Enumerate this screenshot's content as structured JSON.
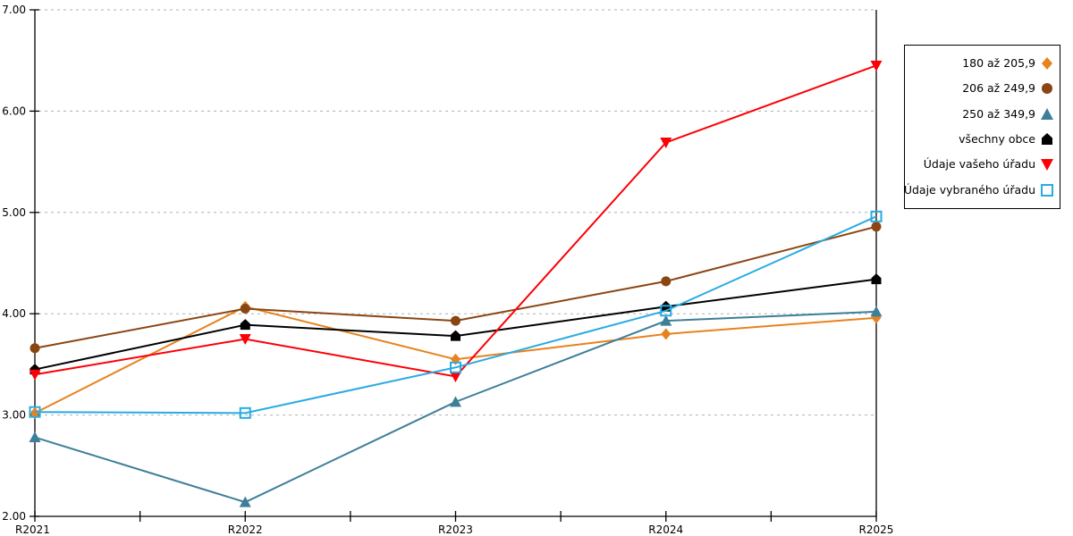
{
  "chart_data": {
    "type": "line",
    "title": "",
    "xlabel": "",
    "ylabel": "",
    "categories": [
      "R2021",
      "R2022",
      "R2023",
      "R2024",
      "R2025"
    ],
    "ylim": [
      2,
      7
    ],
    "y_tick_step": 1,
    "y_tick_labels": [
      "2.00",
      "3.00",
      "4.00",
      "5.00",
      "6.00",
      "7.00"
    ],
    "grid": "horizontal-dashed",
    "grid_color": "#b0b0b0",
    "axis_color": "#000000",
    "legend_position": "right-outside",
    "series": [
      {
        "name": "180 až 205,9",
        "marker": "diamond",
        "color": "#e8821d",
        "values": [
          3.02,
          4.07,
          3.55,
          3.8,
          3.96
        ]
      },
      {
        "name": "206 až 249,9",
        "marker": "circle",
        "color": "#8b4513",
        "values": [
          3.66,
          4.05,
          3.93,
          4.32,
          4.86
        ]
      },
      {
        "name": "250 až 349,9",
        "marker": "triangle-up",
        "color": "#3d7e99",
        "values": [
          2.78,
          2.14,
          3.13,
          3.93,
          4.02
        ]
      },
      {
        "name": "všechny obce",
        "marker": "pentagon",
        "color": "#000000",
        "values": [
          3.45,
          3.89,
          3.78,
          4.07,
          4.34
        ]
      },
      {
        "name": "Údaje vašeho úřadu",
        "marker": "triangle-down",
        "color": "#fb0006",
        "values": [
          3.4,
          3.75,
          3.38,
          5.69,
          6.45
        ]
      },
      {
        "name": "Údaje vybraného úřadu",
        "marker": "square-open",
        "color": "#29abe2",
        "values": [
          3.03,
          3.02,
          3.47,
          4.03,
          4.96
        ]
      }
    ]
  }
}
